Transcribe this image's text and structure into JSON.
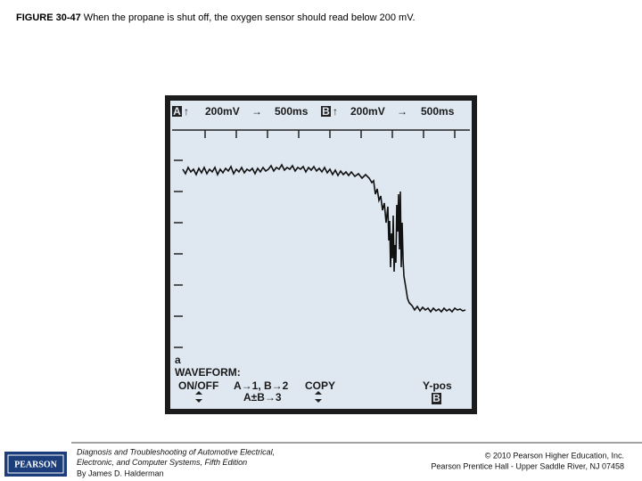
{
  "header": {
    "figure": "FIGURE 30-47",
    "caption": " When the propane is shut off, the oxygen sensor should read below 200 mV."
  },
  "scope": {
    "top": {
      "channel_a": "A",
      "arrow_a": "↑",
      "volts_a": "200mV",
      "time_arrow_a": "→",
      "time_a": "500ms",
      "channel_b": "B",
      "arrow_b": "↑",
      "volts_b": "200mV",
      "time_arrow_b": "→",
      "time_b": "500ms"
    },
    "bottom": {
      "mode": "a",
      "waveform": "WAVEFORM:",
      "on_off": "ON/OFF",
      "assign": "A→1, B→2",
      "assign_sum": "A±B→3",
      "copy": "COPY",
      "y_pos": "Y-pos",
      "channel": "B"
    }
  },
  "footer": {
    "logo": "PEARSON",
    "book": [
      "Diagnosis and Troubleshooting of Automotive Electrical,",
      "Electronic, and Computer Systems, Fifth Edition",
      "By James D. Halderman"
    ],
    "copyright": [
      "© 2010 Pearson Higher Education, Inc.",
      "Pearson Prentice Hall - Upper Saddle River, NJ 07458"
    ]
  }
}
